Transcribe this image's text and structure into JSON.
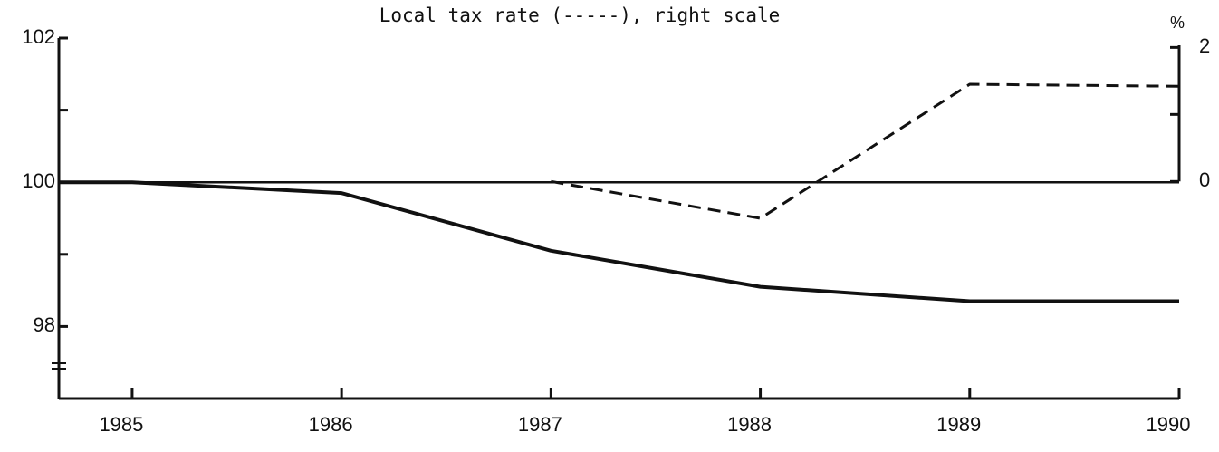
{
  "chart_data": {
    "type": "line",
    "title": "Local tax rate (-----), right scale",
    "y2_unit": "%",
    "x": [
      1984.65,
      1985,
      1986,
      1987,
      1988,
      1989,
      1990
    ],
    "xlim": [
      1984.65,
      1990
    ],
    "xticks": [
      1985,
      1986,
      1987,
      1988,
      1989,
      1990
    ],
    "ylim": [
      97,
      102
    ],
    "yticks": [
      98,
      100,
      102
    ],
    "yminorticks": [
      99,
      101
    ],
    "y2lim": [
      -3.24,
      2.14
    ],
    "y2ticks": [
      0,
      2
    ],
    "y2minorticks": [
      1
    ],
    "hline": 100,
    "series": [
      {
        "color": "#111111",
        "style": "solid",
        "values": [
          100,
          100,
          99.85,
          99.05,
          98.55,
          98.35,
          98.35
        ]
      },
      {
        "color": "#111111",
        "style": "dashed",
        "axis": "y2",
        "values": [
          null,
          null,
          null,
          0,
          -0.55,
          1.45,
          1.42
        ]
      }
    ]
  }
}
